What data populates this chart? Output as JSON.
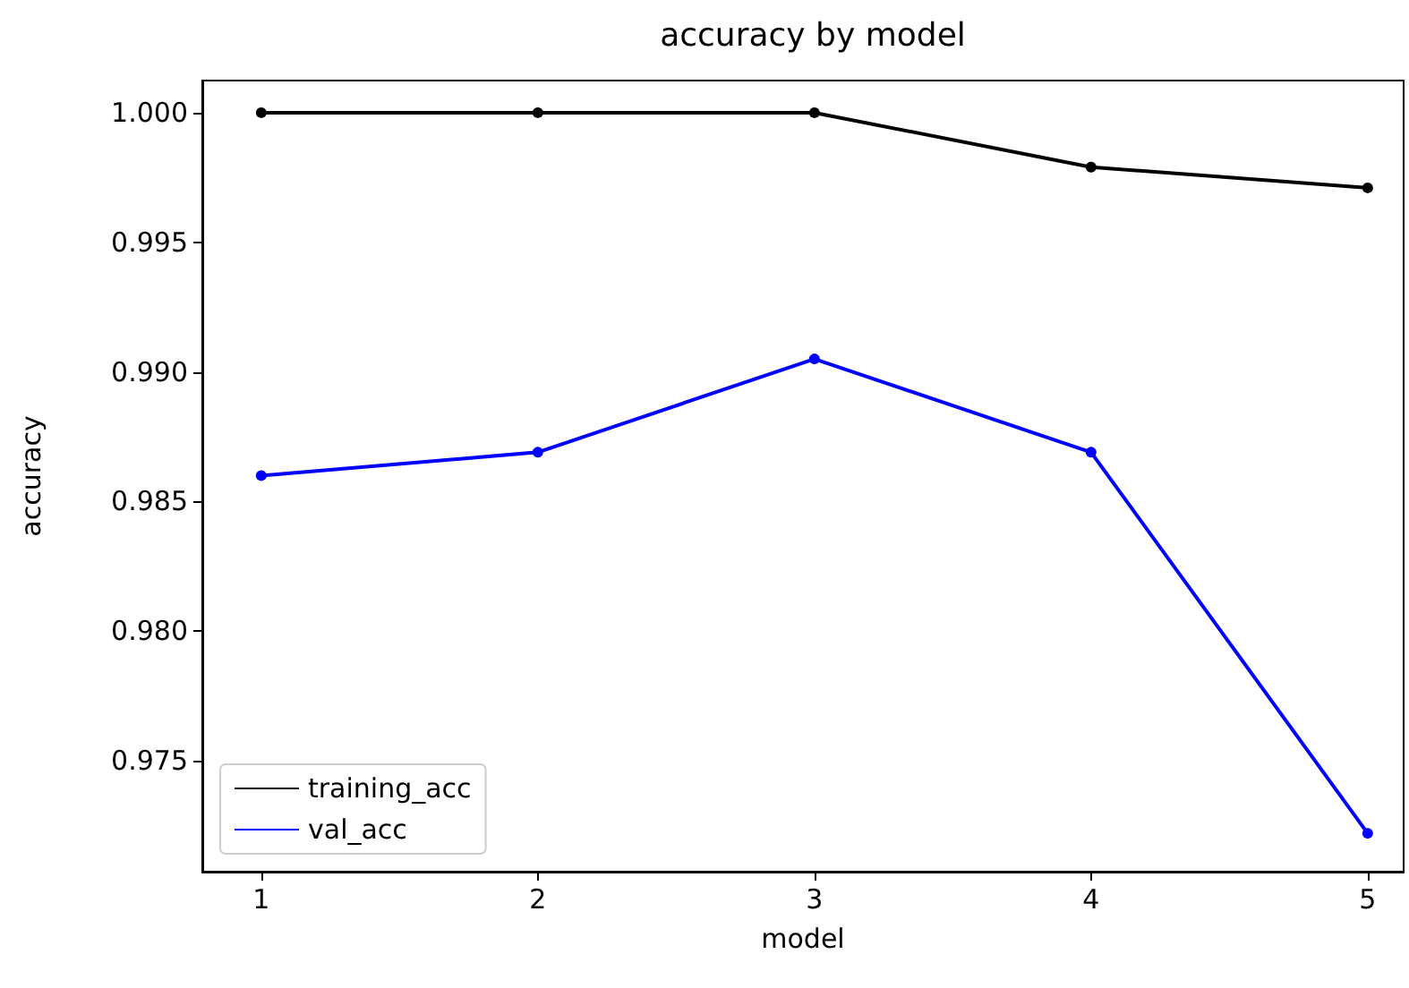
{
  "chart_data": {
    "type": "line",
    "title": "accuracy by model",
    "xlabel": "model",
    "ylabel": "accuracy",
    "x": [
      1,
      2,
      3,
      4,
      5
    ],
    "series": [
      {
        "name": "training_acc",
        "color": "#000000",
        "values": [
          1.0,
          1.0,
          1.0,
          0.9979,
          0.9971
        ]
      },
      {
        "name": "val_acc",
        "color": "#0000ff",
        "values": [
          0.986,
          0.9869,
          0.9905,
          0.9869,
          0.9722
        ]
      }
    ],
    "xlim": [
      0.787,
      5.13
    ],
    "xticks": [
      1,
      2,
      3,
      4,
      5
    ],
    "ylim": [
      0.97072,
      1.00124
    ],
    "yticks": [
      0.975,
      {
        "value": 0.98,
        "label": "0.980"
      },
      0.985,
      {
        "value": 0.99,
        "label": "0.990"
      },
      0.995,
      {
        "value": 1,
        "label": "1.000"
      }
    ],
    "grid": false,
    "legend": "bottom left",
    "marker": "circle",
    "line_style": "solid"
  }
}
